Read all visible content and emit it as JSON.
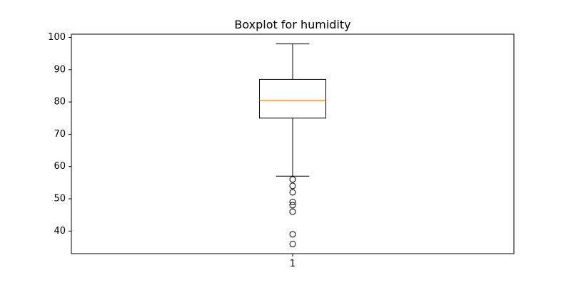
{
  "chart_data": {
    "type": "boxplot",
    "title": "Boxplot for humidity",
    "xlabel": "",
    "ylabel": "",
    "categories": [
      "1"
    ],
    "ylim": [
      33,
      101
    ],
    "yticks": [
      40,
      50,
      60,
      70,
      80,
      90,
      100
    ],
    "grid": false,
    "boxes": [
      {
        "category": "1",
        "whisker_low": 57,
        "q1": 75,
        "median": 80.5,
        "q3": 87,
        "whisker_high": 98,
        "outliers": [
          56,
          54,
          52,
          49,
          48,
          46,
          39,
          36
        ]
      }
    ],
    "colors": {
      "box": "#000000",
      "median": "#ff7f0e",
      "background": "#ffffff"
    }
  }
}
